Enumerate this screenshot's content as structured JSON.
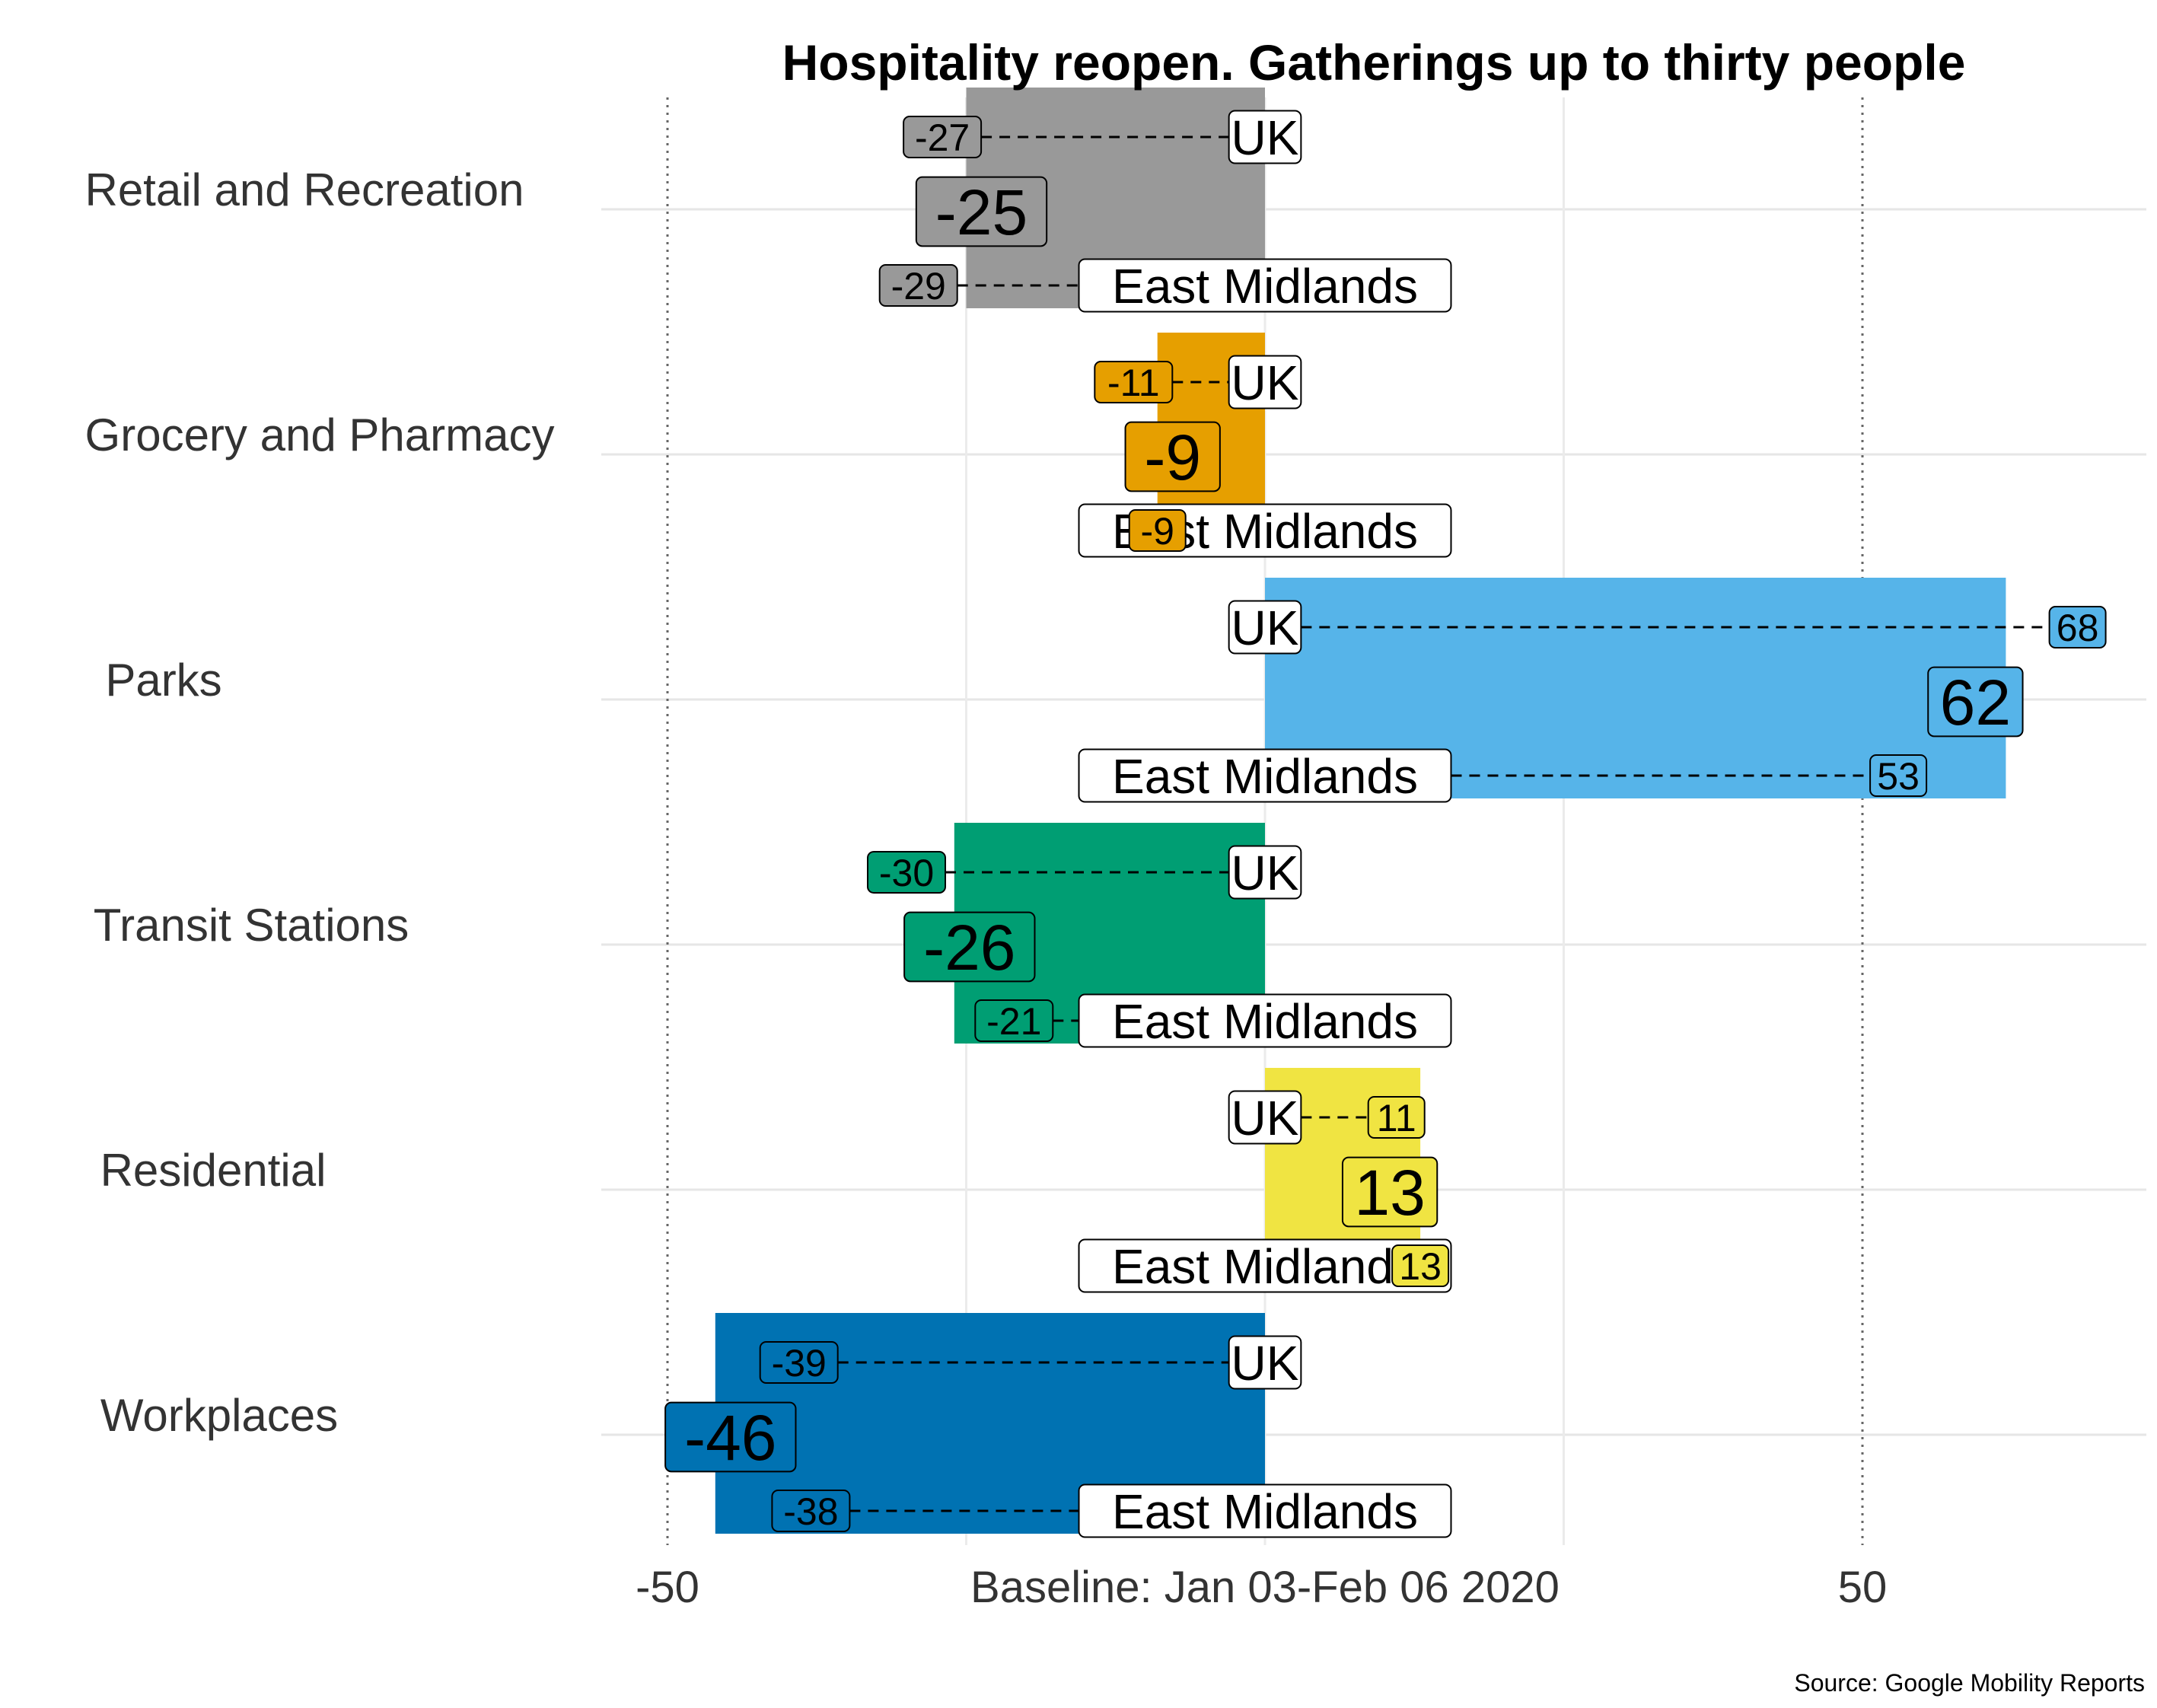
{
  "chart_data": {
    "type": "bar",
    "title": "Hospitality reopen. Gatherings up to thirty people",
    "source": "Source: Google Mobility Reports",
    "xlim": [
      -55,
      74
    ],
    "xticks": [
      {
        "value": -50,
        "label": "-50"
      },
      {
        "value": 0,
        "label": "Baseline: Jan 03-Feb 06 2020"
      },
      {
        "value": 50,
        "label": "50"
      }
    ],
    "reference_lines": [
      -50,
      50
    ],
    "uk_label": "UK",
    "region_label": "East Midlands",
    "categories": [
      {
        "name": "Retail and Recreation",
        "value": -25,
        "uk": -27,
        "region": -29,
        "color": "#999999"
      },
      {
        "name": "Grocery and Pharmacy",
        "value": -9,
        "uk": -11,
        "region": -9,
        "color": "#E69F00"
      },
      {
        "name": "Parks",
        "value": 62,
        "uk": 68,
        "region": 53,
        "color": "#56B4E9"
      },
      {
        "name": "Transit Stations",
        "value": -26,
        "uk": -30,
        "region": -21,
        "color": "#009E73"
      },
      {
        "name": "Residential",
        "value": 13,
        "uk": 11,
        "region": 13,
        "color": "#F0E442"
      },
      {
        "name": "Workplaces",
        "value": -46,
        "uk": -39,
        "region": -38,
        "color": "#0072B2"
      }
    ]
  }
}
